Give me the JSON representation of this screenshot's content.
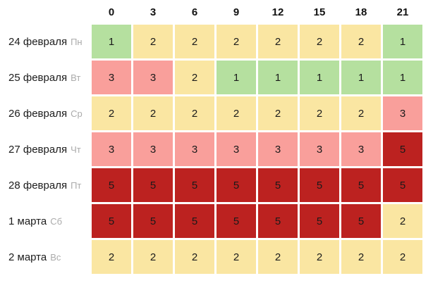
{
  "chart_data": {
    "type": "heatmap",
    "columns": [
      "0",
      "3",
      "6",
      "9",
      "12",
      "15",
      "18",
      "21"
    ],
    "rows": [
      {
        "date": "24 февраля",
        "weekday": "Пн",
        "values": [
          1,
          2,
          2,
          2,
          2,
          2,
          2,
          1
        ]
      },
      {
        "date": "25 февраля",
        "weekday": "Вт",
        "values": [
          3,
          3,
          2,
          1,
          1,
          1,
          1,
          1
        ]
      },
      {
        "date": "26 февраля",
        "weekday": "Ср",
        "values": [
          2,
          2,
          2,
          2,
          2,
          2,
          2,
          3
        ]
      },
      {
        "date": "27 февраля",
        "weekday": "Чт",
        "values": [
          3,
          3,
          3,
          3,
          3,
          3,
          3,
          5
        ]
      },
      {
        "date": "28 февраля",
        "weekday": "Пт",
        "values": [
          5,
          5,
          5,
          5,
          5,
          5,
          5,
          5
        ]
      },
      {
        "date": "1 марта",
        "weekday": "Сб",
        "values": [
          5,
          5,
          5,
          5,
          5,
          5,
          5,
          2
        ]
      },
      {
        "date": "2 марта",
        "weekday": "Вс",
        "values": [
          2,
          2,
          2,
          2,
          2,
          2,
          2,
          2
        ]
      }
    ],
    "value_colors": {
      "1": "#b5e09f",
      "2": "#fae6a2",
      "3": "#f99f9b",
      "5": "#bc2220"
    },
    "legend_position": "none",
    "grid": false,
    "text_colors": {
      "column_header": "#111111",
      "row_date": "#1c1c1c",
      "row_weekday": "#ababab",
      "cell_value": "#1a1a1a"
    },
    "background": "#ffffff"
  }
}
